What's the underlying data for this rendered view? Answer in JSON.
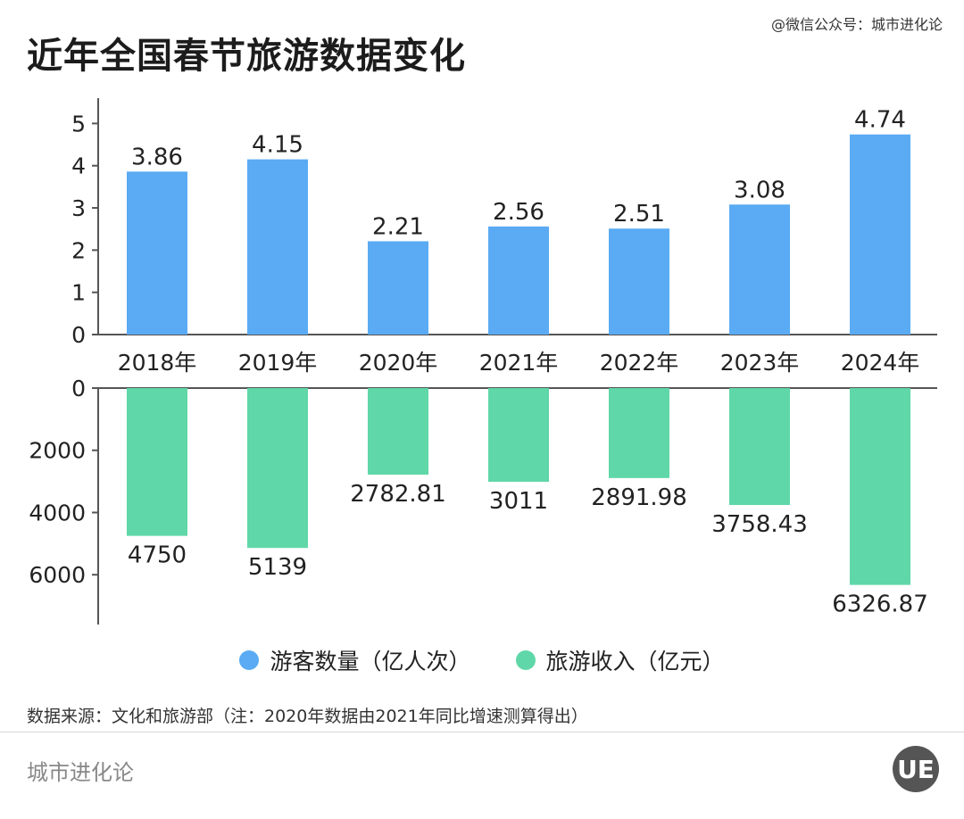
{
  "header": {
    "wechat": "@微信公众号：城市进化论",
    "title": "近年全国春节旅游数据变化"
  },
  "colors": {
    "visitors": "#5aabf3",
    "revenue": "#5fd7a8",
    "axis": "#555555"
  },
  "chart_data": [
    {
      "type": "bar",
      "categories": [
        "2018年",
        "2019年",
        "2020年",
        "2021年",
        "2022年",
        "2023年",
        "2024年"
      ],
      "series": [
        {
          "name": "游客数量（亿人次）",
          "values": [
            3.86,
            4.15,
            2.21,
            2.56,
            2.51,
            3.08,
            4.74
          ]
        }
      ],
      "ylim": [
        0,
        5.6
      ],
      "yticks": [
        0,
        1,
        2,
        3,
        4,
        5
      ],
      "grid": false
    },
    {
      "type": "bar",
      "orientation": "downward",
      "categories": [
        "2018年",
        "2019年",
        "2020年",
        "2021年",
        "2022年",
        "2023年",
        "2024年"
      ],
      "series": [
        {
          "name": "旅游收入（亿元）",
          "values": [
            4750,
            5139,
            2782.81,
            3011,
            2891.98,
            3758.43,
            6326.87
          ]
        }
      ],
      "ylim": [
        0,
        7600
      ],
      "yticks": [
        0,
        2000,
        4000,
        6000
      ],
      "grid": false
    }
  ],
  "legend": {
    "visitors": "游客数量（亿人次）",
    "revenue": "旅游收入（亿元）"
  },
  "footer": {
    "source": "数据来源：文化和旅游部（注：2020年数据由2021年同比增速测算得出）",
    "brand": "城市进化论",
    "logo_text": "UE"
  }
}
